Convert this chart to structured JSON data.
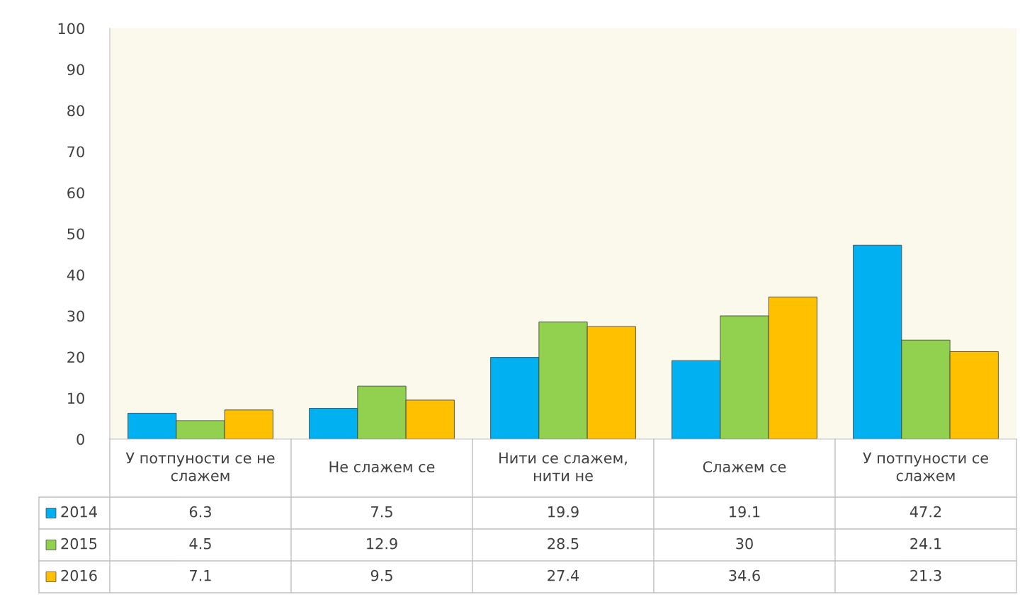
{
  "chart_data": {
    "type": "bar",
    "categories": [
      "У потпуности се не слажем",
      "Не слажем се",
      "Нити се слажем, нити не",
      "Слажем се",
      "У потпуности се слажем"
    ],
    "series": [
      {
        "name": "2014",
        "color": "#00b0f0",
        "values": [
          6.3,
          7.5,
          19.9,
          19.1,
          47.2
        ]
      },
      {
        "name": "2015",
        "color": "#92d050",
        "values": [
          4.5,
          12.9,
          28.5,
          30,
          24.1
        ]
      },
      {
        "name": "2016",
        "color": "#ffc000",
        "values": [
          7.1,
          9.5,
          27.4,
          34.6,
          21.3
        ]
      }
    ],
    "ylim": [
      0,
      100
    ],
    "yticks": [
      0,
      10,
      20,
      30,
      40,
      50,
      60,
      70,
      80,
      90,
      100
    ],
    "grid": false,
    "legend": "bottom",
    "data_labels": true
  }
}
